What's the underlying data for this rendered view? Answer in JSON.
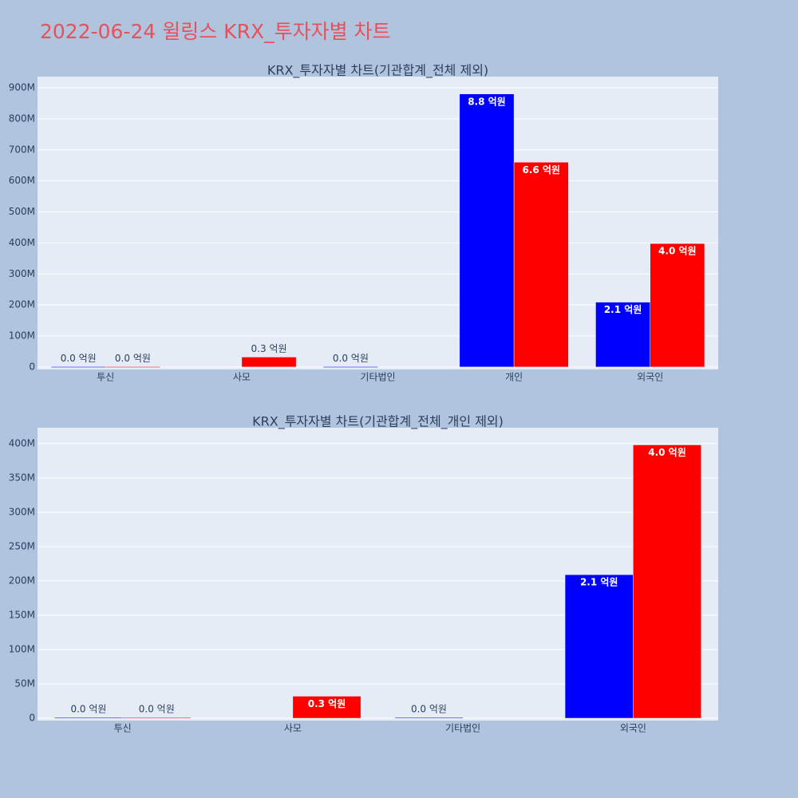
{
  "title": "2022-06-24 윌링스 KRX_투자자별 차트",
  "chart_data": [
    {
      "type": "bar",
      "title": "KRX_투자자별 차트(기관합계_전체 제외)",
      "categories": [
        "투신",
        "사모",
        "기타법인",
        "개인",
        "외국인"
      ],
      "series": [
        {
          "color": "#0000ff",
          "values": [
            1000000,
            null,
            1000000,
            880000000,
            209000000
          ],
          "value_labels": [
            "0.0 억원",
            null,
            "0.0 억원",
            "8.8 억원",
            "2.1 억원"
          ]
        },
        {
          "color": "#ff0000",
          "values": [
            1000000,
            32000000,
            null,
            660000000,
            398000000
          ],
          "value_labels": [
            "0.0 억원",
            "0.3 억원",
            null,
            "6.6 억원",
            "4.0 억원"
          ]
        }
      ],
      "ylim": [
        -8000000,
        936000000
      ],
      "yticks": [
        0,
        {
          "value": 100000000,
          "label": "100M"
        },
        {
          "value": 200000000,
          "label": "200M"
        },
        {
          "value": 300000000,
          "label": "300M"
        },
        {
          "value": 400000000,
          "label": "400M"
        },
        {
          "value": 500000000,
          "label": "500M"
        },
        {
          "value": 600000000,
          "label": "600M"
        },
        {
          "value": 700000000,
          "label": "700M"
        },
        {
          "value": 800000000,
          "label": "800M"
        },
        {
          "value": 900000000,
          "label": "900M"
        }
      ],
      "grid": true
    },
    {
      "type": "bar",
      "title": "KRX_투자자별 차트(기관합계_전체_개인 제외)",
      "categories": [
        "투신",
        "사모",
        "기타법인",
        "외국인"
      ],
      "series": [
        {
          "color": "#0000ff",
          "values": [
            1000000,
            null,
            1000000,
            209000000
          ],
          "value_labels": [
            "0.0 억원",
            null,
            "0.0 억원",
            "2.1 억원"
          ]
        },
        {
          "color": "#ff0000",
          "values": [
            1000000,
            32000000,
            null,
            398000000
          ],
          "value_labels": [
            "0.0 억원",
            "0.3 억원",
            null,
            "4.0 억원"
          ]
        }
      ],
      "ylim": [
        -3500000,
        423000000
      ],
      "yticks": [
        0,
        {
          "value": 50000000,
          "label": "50M"
        },
        {
          "value": 100000000,
          "label": "100M"
        },
        {
          "value": 150000000,
          "label": "150M"
        },
        {
          "value": 200000000,
          "label": "200M"
        },
        {
          "value": 250000000,
          "label": "250M"
        },
        {
          "value": 300000000,
          "label": "300M"
        },
        {
          "value": 350000000,
          "label": "350M"
        },
        {
          "value": 400000000,
          "label": "400M"
        }
      ],
      "grid": true
    }
  ]
}
